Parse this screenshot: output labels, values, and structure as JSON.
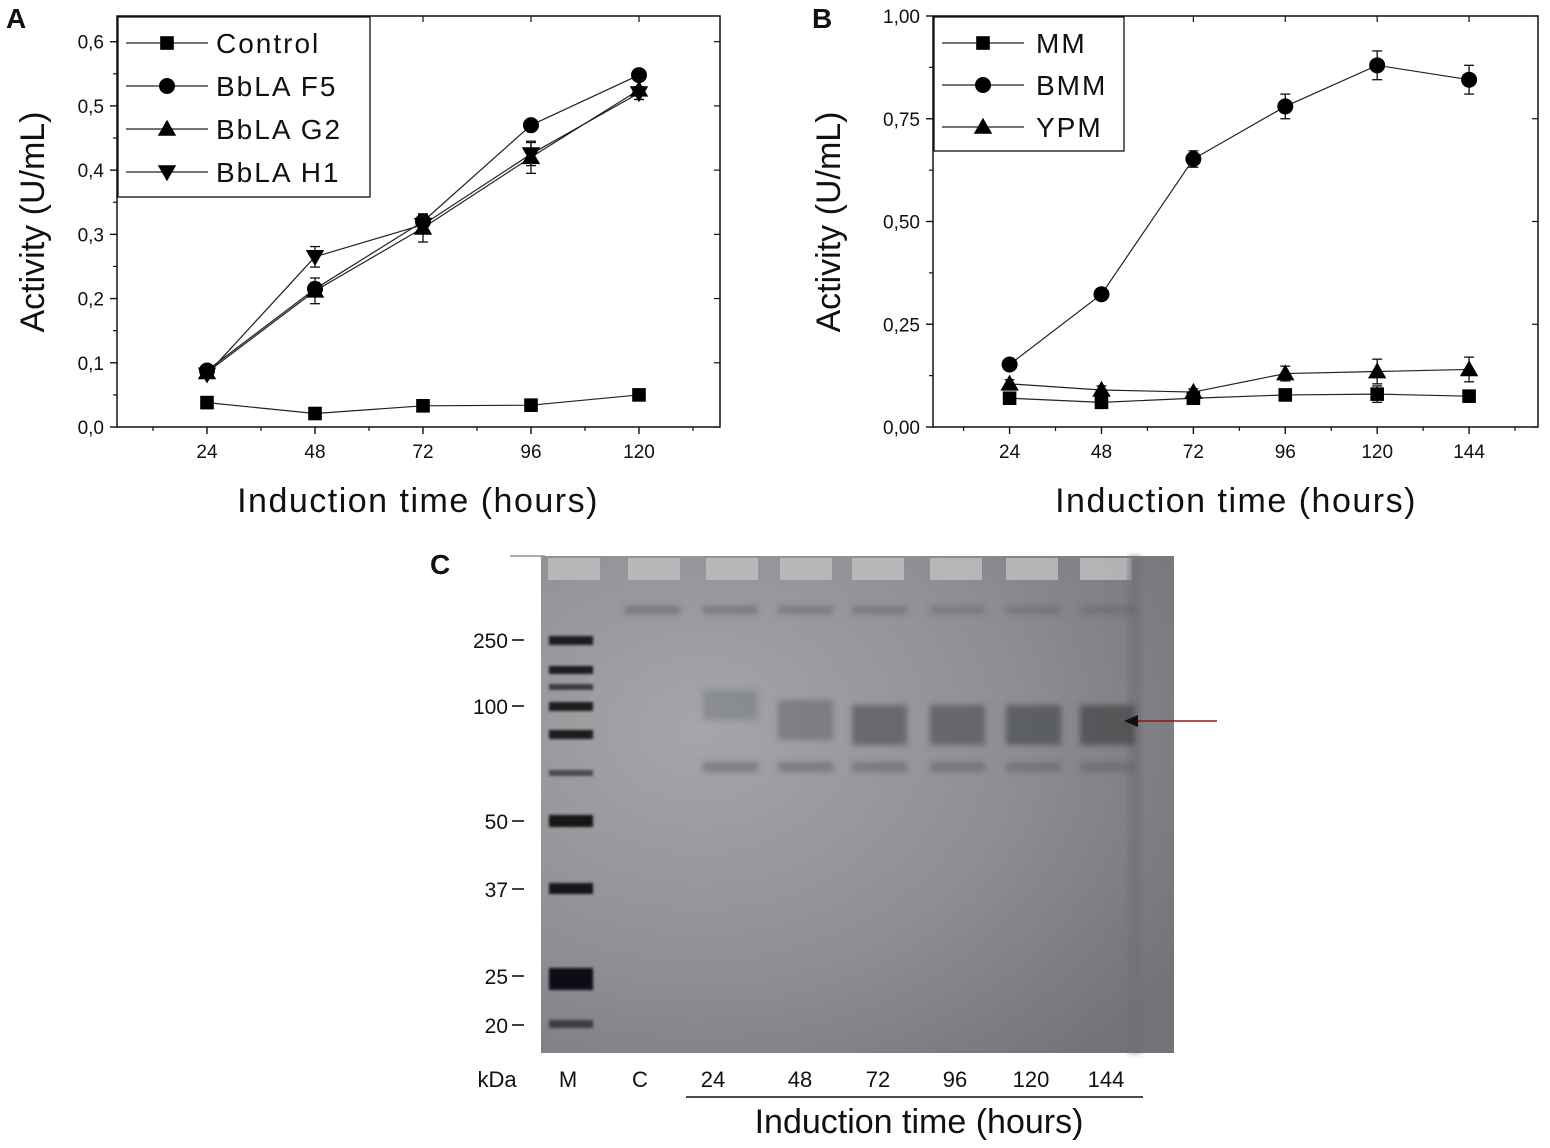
{
  "panels": {
    "A": {
      "letter": "A"
    },
    "B": {
      "letter": "B"
    },
    "C": {
      "letter": "C"
    }
  },
  "chart_data": [
    {
      "panel": "A",
      "type": "line",
      "xlabel": "Induction time (hours)",
      "ylabel": "Activity (U/mL)",
      "x": [
        24,
        48,
        72,
        96,
        120
      ],
      "x_ticks": [
        "24",
        "48",
        "72",
        "96",
        "120"
      ],
      "xlim": [
        4,
        138
      ],
      "ylim": [
        0,
        0.64
      ],
      "y_ticks": [
        0,
        0.1,
        0.2,
        0.3,
        0.4,
        0.5,
        0.6
      ],
      "y_tick_labels": [
        "0,0",
        "0,1",
        "0,2",
        "0,3",
        "0,4",
        "0,5",
        "0,6"
      ],
      "legend_position": "top-left",
      "series": [
        {
          "name": "Control",
          "marker": "square",
          "values": [
            0.038,
            0.021,
            0.033,
            0.034,
            0.05
          ],
          "errors": [
            0,
            0,
            0,
            0,
            0
          ]
        },
        {
          "name": "BbLA F5",
          "marker": "circle",
          "values": [
            0.088,
            0.215,
            0.32,
            0.47,
            0.548
          ],
          "errors": [
            0.006,
            0.01,
            0.01,
            0.006,
            0.008
          ]
        },
        {
          "name": "BbLA G2",
          "marker": "triangle-up",
          "values": [
            0.085,
            0.212,
            0.31,
            0.42,
            0.525
          ],
          "errors": [
            0.005,
            0.02,
            0.022,
            0.025,
            0.015
          ]
        },
        {
          "name": "BbLA H1",
          "marker": "triangle-down",
          "values": [
            0.082,
            0.265,
            0.315,
            0.425,
            0.52
          ],
          "errors": [
            0.005,
            0.016,
            0.012,
            0.018,
            0.01
          ]
        }
      ]
    },
    {
      "panel": "B",
      "type": "line",
      "xlabel": "Induction time (hours)",
      "ylabel": "Activity (U/mL)",
      "x": [
        24,
        48,
        72,
        96,
        120,
        144
      ],
      "x_ticks": [
        "24",
        "48",
        "72",
        "96",
        "120",
        "144"
      ],
      "xlim": [
        4,
        162
      ],
      "ylim": [
        0,
        1.0
      ],
      "y_ticks": [
        0,
        0.25,
        0.5,
        0.75,
        1.0
      ],
      "y_tick_labels": [
        "0,00",
        "0,25",
        "0,50",
        "0,75",
        "1,00"
      ],
      "legend_position": "top-left",
      "series": [
        {
          "name": "MM",
          "marker": "square",
          "values": [
            0.07,
            0.06,
            0.07,
            0.078,
            0.08,
            0.075
          ],
          "errors": [
            0.006,
            0.006,
            0.006,
            0.01,
            0.02,
            0.008
          ]
        },
        {
          "name": "BMM",
          "marker": "circle",
          "values": [
            0.152,
            0.323,
            0.652,
            0.78,
            0.88,
            0.845
          ],
          "errors": [
            0.008,
            0.008,
            0.02,
            0.03,
            0.035,
            0.035
          ]
        },
        {
          "name": "YPM",
          "marker": "triangle-up",
          "values": [
            0.105,
            0.09,
            0.085,
            0.13,
            0.135,
            0.14
          ],
          "errors": [
            0.01,
            0.01,
            0.008,
            0.018,
            0.03,
            0.03
          ]
        }
      ]
    }
  ],
  "gel": {
    "markers": [
      "250",
      "100",
      "50",
      "37",
      "25",
      "20"
    ],
    "kda_label": "kDa",
    "lane_labels": [
      "M",
      "C",
      "24",
      "48",
      "72",
      "96",
      "120",
      "144"
    ],
    "xlabel": "Induction time (hours)"
  },
  "colors": {
    "axis": "#111111",
    "gel_bg": "#8f9093",
    "arrow": "#8a1a1a"
  }
}
